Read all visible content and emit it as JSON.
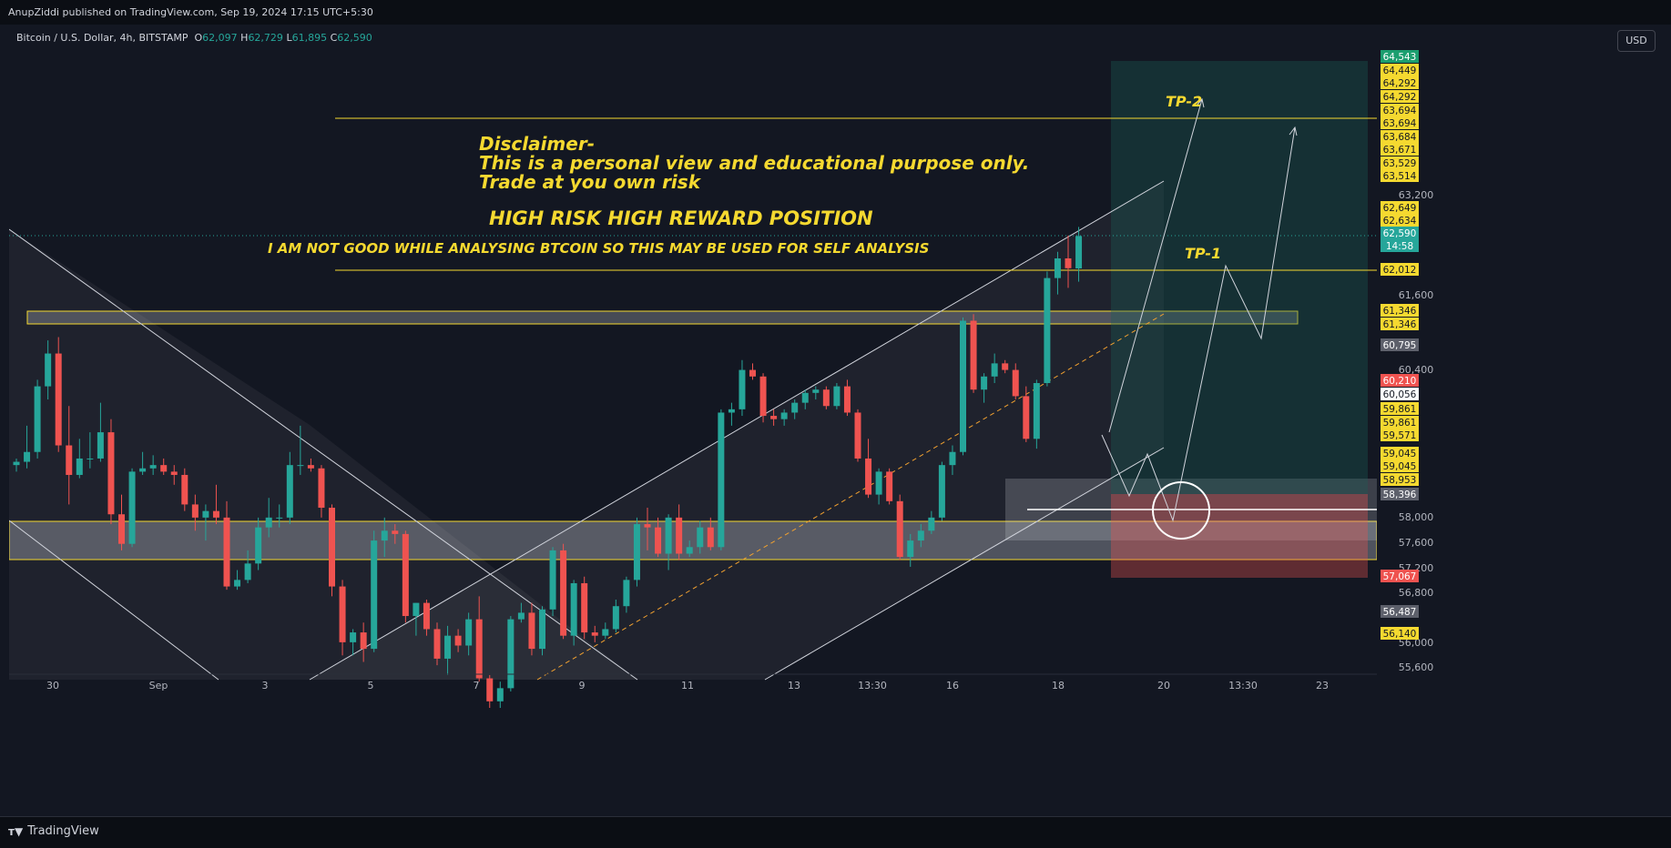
{
  "header": {
    "publish_line": "AnupZiddi published on TradingView.com, Sep 19, 2024 17:15 UTC+5:30",
    "symbol": "Bitcoin / U.S. Dollar, 4h, BITSTAMP",
    "ohlc": [
      {
        "k": "O",
        "v": "62,097"
      },
      {
        "k": "H",
        "v": "62,729"
      },
      {
        "k": "L",
        "v": "61,895"
      },
      {
        "k": "C",
        "v": "62,590"
      }
    ],
    "currency_button": "USD"
  },
  "footer": {
    "brand": "TradingView",
    "brand_icon": "tradingview-logo-icon"
  },
  "annotations": {
    "disclaimer": [
      "Disclaimer-",
      "This is a personal view and educational purpose only.",
      "Trade at you own risk"
    ],
    "headline": "HIGH RISK HIGH REWARD POSITION",
    "note": "I AM NOT GOOD WHILE ANALYSING BTCOIN SO THIS MAY BE USED FOR SELF ANALYSIS",
    "tp1": "TP-1",
    "tp2": "TP-2"
  },
  "colors": {
    "background": "#131722",
    "up": "#26a69a",
    "down": "#ef5350",
    "annotation_text": "#f5d930",
    "trendline": "#d1d4dc"
  },
  "chart_data": {
    "type": "candlestick",
    "ylim": [
      55400,
      65300
    ],
    "y_ticks": [
      "63,200",
      "61,600",
      "60,400",
      "58,000",
      "57,600",
      "57,200",
      "56,800",
      "56,000",
      "55,600"
    ],
    "x_ticks": [
      "30",
      "Sep",
      "3",
      "5",
      "7",
      "9",
      "11",
      "13",
      "13:30",
      "16",
      "18",
      "20",
      "13:30",
      "23"
    ],
    "price_labels": [
      {
        "text": "64,543",
        "bg": "#1b9e6f",
        "fg": "#ffffff"
      },
      {
        "text": "64,449",
        "bg": "#f5d930",
        "fg": "#131722"
      },
      {
        "text": "64,292",
        "bg": "#f5d930",
        "fg": "#131722"
      },
      {
        "text": "64,292",
        "bg": "#f5d930",
        "fg": "#131722"
      },
      {
        "text": "63,694",
        "bg": "#f5d930",
        "fg": "#131722"
      },
      {
        "text": "63,694",
        "bg": "#f5d930",
        "fg": "#131722"
      },
      {
        "text": "63,684",
        "bg": "#f5d930",
        "fg": "#131722"
      },
      {
        "text": "63,671",
        "bg": "#f5d930",
        "fg": "#131722"
      },
      {
        "text": "63,529",
        "bg": "#f5d930",
        "fg": "#131722"
      },
      {
        "text": "63,514",
        "bg": "#f5d930",
        "fg": "#131722"
      },
      {
        "text": "62,649",
        "bg": "#f5d930",
        "fg": "#131722"
      },
      {
        "text": "62,634",
        "bg": "#f5d930",
        "fg": "#131722"
      },
      {
        "text": "62,590",
        "bg": "#26a69a",
        "fg": "#ffffff"
      },
      {
        "text": "14:58",
        "bg": "#26a69a",
        "fg": "#ffffff"
      },
      {
        "text": "62,012",
        "bg": "#f5d930",
        "fg": "#131722"
      },
      {
        "text": "61,346",
        "bg": "#f5d930",
        "fg": "#131722"
      },
      {
        "text": "61,346",
        "bg": "#f5d930",
        "fg": "#131722"
      },
      {
        "text": "60,795",
        "bg": "#5d606b",
        "fg": "#ffffff"
      },
      {
        "text": "60,210",
        "bg": "#ef5350",
        "fg": "#ffffff"
      },
      {
        "text": "60,056",
        "bg": "#ffffff",
        "fg": "#131722"
      },
      {
        "text": "59,861",
        "bg": "#f5d930",
        "fg": "#131722"
      },
      {
        "text": "59,861",
        "bg": "#f5d930",
        "fg": "#131722"
      },
      {
        "text": "59,571",
        "bg": "#f5d930",
        "fg": "#131722"
      },
      {
        "text": "59,045",
        "bg": "#f5d930",
        "fg": "#131722"
      },
      {
        "text": "59,045",
        "bg": "#f5d930",
        "fg": "#131722"
      },
      {
        "text": "58,953",
        "bg": "#f5d930",
        "fg": "#131722"
      },
      {
        "text": "58,396",
        "bg": "#5d606b",
        "fg": "#ffffff"
      },
      {
        "text": "57,067",
        "bg": "#ef5350",
        "fg": "#ffffff"
      },
      {
        "text": "56,487",
        "bg": "#5d606b",
        "fg": "#ffffff"
      },
      {
        "text": "56,140",
        "bg": "#f5d930",
        "fg": "#131722"
      }
    ],
    "candles": [
      [
        59100,
        59200,
        59000,
        59150
      ],
      [
        59150,
        59700,
        59050,
        59300
      ],
      [
        59300,
        60400,
        59200,
        60300
      ],
      [
        60300,
        61000,
        60100,
        60800
      ],
      [
        60800,
        61050,
        59300,
        59400
      ],
      [
        59400,
        60000,
        58500,
        58950
      ],
      [
        58950,
        59500,
        58900,
        59200
      ],
      [
        59200,
        59600,
        59050,
        59200
      ],
      [
        59200,
        60050,
        59150,
        59600
      ],
      [
        59600,
        59800,
        58200,
        58350
      ],
      [
        58350,
        58650,
        57800,
        57900
      ],
      [
        57900,
        59050,
        57850,
        59000
      ],
      [
        59000,
        59300,
        58950,
        59050
      ],
      [
        59050,
        59250,
        58950,
        59100
      ],
      [
        59100,
        59200,
        58950,
        59000
      ],
      [
        59000,
        59100,
        58800,
        58950
      ],
      [
        58950,
        59050,
        58400,
        58500
      ],
      [
        58500,
        58650,
        58100,
        58300
      ],
      [
        58300,
        58500,
        57950,
        58400
      ],
      [
        58400,
        58800,
        58200,
        58300
      ],
      [
        58300,
        58550,
        57200,
        57250
      ],
      [
        57250,
        57500,
        57200,
        57350
      ],
      [
        57350,
        57800,
        57300,
        57600
      ],
      [
        57600,
        58300,
        57500,
        58150
      ],
      [
        58150,
        58600,
        58000,
        58300
      ],
      [
        58300,
        58500,
        58150,
        58300
      ],
      [
        58300,
        59300,
        58200,
        59100
      ],
      [
        59100,
        59700,
        58950,
        59100
      ],
      [
        59100,
        59200,
        59000,
        59050
      ],
      [
        59050,
        59100,
        58300,
        58450
      ],
      [
        58450,
        58500,
        57100,
        57250
      ],
      [
        57250,
        57350,
        56200,
        56400
      ],
      [
        56400,
        56600,
        56200,
        56550
      ],
      [
        56550,
        56700,
        56100,
        56300
      ],
      [
        56300,
        58100,
        56250,
        57950
      ],
      [
        57950,
        58300,
        57700,
        58100
      ],
      [
        58100,
        58200,
        57900,
        58050
      ],
      [
        58050,
        58100,
        56700,
        56800
      ],
      [
        56800,
        57000,
        56500,
        57000
      ],
      [
        57000,
        57050,
        56500,
        56600
      ],
      [
        56600,
        56700,
        56050,
        56150
      ],
      [
        56150,
        56650,
        55900,
        56500
      ],
      [
        56500,
        56600,
        56250,
        56350
      ],
      [
        56350,
        56850,
        56200,
        56750
      ],
      [
        56750,
        57100,
        55800,
        55850
      ],
      [
        55850,
        55900,
        55400,
        55500
      ],
      [
        55500,
        55800,
        55400,
        55700
      ],
      [
        55700,
        56800,
        55650,
        56750
      ],
      [
        56750,
        57000,
        56700,
        56850
      ],
      [
        56850,
        57000,
        56200,
        56300
      ],
      [
        56300,
        56950,
        56200,
        56900
      ],
      [
        56900,
        57850,
        56800,
        57800
      ],
      [
        57800,
        57900,
        56450,
        56500
      ],
      [
        56500,
        57350,
        56350,
        57300
      ],
      [
        57300,
        57400,
        56450,
        56550
      ],
      [
        56550,
        56650,
        56400,
        56500
      ],
      [
        56500,
        56700,
        56450,
        56600
      ],
      [
        56600,
        57050,
        56550,
        56950
      ],
      [
        56950,
        57400,
        56850,
        57350
      ],
      [
        57350,
        58300,
        57250,
        58200
      ],
      [
        58200,
        58450,
        57800,
        58150
      ],
      [
        58150,
        58300,
        57700,
        57750
      ],
      [
        57750,
        58350,
        57500,
        58300
      ],
      [
        58300,
        58500,
        57650,
        57750
      ],
      [
        57750,
        57950,
        57700,
        57850
      ],
      [
        57850,
        58250,
        57750,
        58150
      ],
      [
        58150,
        58300,
        57800,
        57850
      ],
      [
        57850,
        59950,
        57800,
        59900
      ],
      [
        59900,
        60050,
        59700,
        59950
      ],
      [
        59950,
        60700,
        59850,
        60550
      ],
      [
        60550,
        60650,
        60400,
        60450
      ],
      [
        60450,
        60500,
        59750,
        59850
      ],
      [
        59850,
        59950,
        59700,
        59800
      ],
      [
        59800,
        59950,
        59700,
        59900
      ],
      [
        59900,
        60100,
        59800,
        60050
      ],
      [
        60050,
        60250,
        59950,
        60200
      ],
      [
        60200,
        60300,
        60100,
        60250
      ],
      [
        60250,
        60300,
        59950,
        60000
      ],
      [
        60000,
        60350,
        59950,
        60300
      ],
      [
        60300,
        60400,
        59850,
        59900
      ],
      [
        59900,
        59950,
        59150,
        59200
      ],
      [
        59200,
        59500,
        58600,
        58650
      ],
      [
        58650,
        59050,
        58500,
        59000
      ],
      [
        59000,
        59050,
        58500,
        58550
      ],
      [
        58550,
        58650,
        57650,
        57700
      ],
      [
        57700,
        58050,
        57550,
        57950
      ],
      [
        57950,
        58200,
        57850,
        58100
      ],
      [
        58100,
        58400,
        58050,
        58300
      ],
      [
        58300,
        59150,
        58250,
        59100
      ],
      [
        59100,
        59400,
        58950,
        59300
      ],
      [
        59300,
        61350,
        59250,
        61300
      ],
      [
        61300,
        61400,
        60200,
        60250
      ],
      [
        60250,
        60500,
        60050,
        60450
      ],
      [
        60450,
        60800,
        60350,
        60650
      ],
      [
        60650,
        60700,
        60500,
        60550
      ],
      [
        60550,
        60650,
        60100,
        60150
      ],
      [
        60150,
        60300,
        59450,
        59500
      ],
      [
        59500,
        60400,
        59350,
        60350
      ],
      [
        60350,
        62050,
        60300,
        61950
      ],
      [
        61950,
        62350,
        61700,
        62250
      ],
      [
        62250,
        62600,
        61800,
        62100
      ],
      [
        62097,
        62729,
        61895,
        62590
      ]
    ]
  }
}
